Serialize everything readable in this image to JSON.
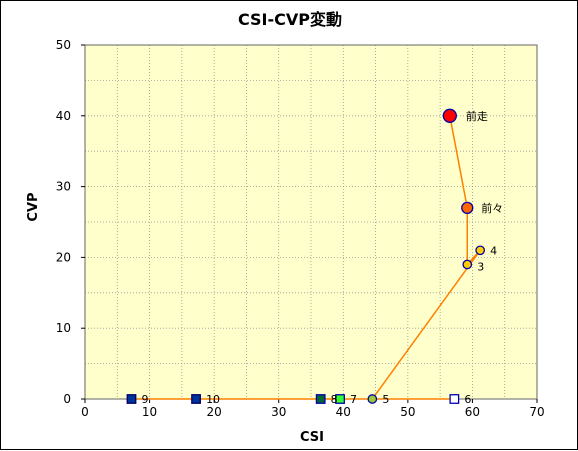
{
  "chart_data": {
    "type": "scatter",
    "title": "CSI-CVP変動",
    "xlabel": "CSI",
    "ylabel": "CVP",
    "xlim": [
      0,
      70
    ],
    "ylim": [
      0,
      50
    ],
    "xticks": [
      0,
      10,
      20,
      30,
      40,
      50,
      60,
      70
    ],
    "yticks": [
      0,
      10,
      20,
      30,
      40,
      50
    ],
    "minor_x_step": 5,
    "minor_y_step": 5,
    "grid": true,
    "background_color": "#FFFFCC",
    "line_color": "#FF8000",
    "points": [
      {
        "label": "前走",
        "x": 56.5,
        "y": 40,
        "shape": "circle",
        "size": "large",
        "fill": "#FF0000",
        "stroke": "#0000AA",
        "connected": true
      },
      {
        "label": "前々",
        "x": 59.2,
        "y": 27,
        "shape": "circle",
        "size": "medium",
        "fill": "#FF6600",
        "stroke": "#0000AA",
        "connected": true
      },
      {
        "label": "3",
        "x": 59.2,
        "y": 19,
        "shape": "circle",
        "size": "small",
        "fill": "#FFCC00",
        "stroke": "#0000AA",
        "connected": true
      },
      {
        "label": "4",
        "x": 61.2,
        "y": 21,
        "shape": "circle",
        "size": "small",
        "fill": "#FFCC00",
        "stroke": "#0000AA",
        "connected": true
      },
      {
        "label": "5",
        "x": 44.5,
        "y": 0,
        "shape": "circle",
        "size": "small",
        "fill": "#99CC33",
        "stroke": "#0000AA",
        "connected": true
      },
      {
        "label": "6",
        "x": 57.2,
        "y": 0,
        "shape": "square",
        "size": "small",
        "fill": "#FFFFFF",
        "stroke": "#0000AA",
        "connected": true
      },
      {
        "label": "7",
        "x": 39.5,
        "y": 0,
        "shape": "square",
        "size": "small",
        "fill": "#33FF33",
        "stroke": "#0000AA",
        "connected": true
      },
      {
        "label": "8",
        "x": 36.5,
        "y": 0,
        "shape": "square",
        "size": "small",
        "fill": "#006633",
        "stroke": "#0000AA",
        "connected": true
      },
      {
        "label": "10",
        "x": 17.2,
        "y": 0,
        "shape": "square",
        "size": "small",
        "fill": "#003399",
        "stroke": "#000066",
        "connected": true
      },
      {
        "label": "9",
        "x": 7.2,
        "y": 0,
        "shape": "square",
        "size": "small",
        "fill": "#003399",
        "stroke": "#000066",
        "connected": true
      }
    ],
    "polyline_order": [
      "前走",
      "前々",
      "3",
      "4",
      "5",
      "6",
      "7",
      "8",
      "10",
      "9"
    ]
  }
}
